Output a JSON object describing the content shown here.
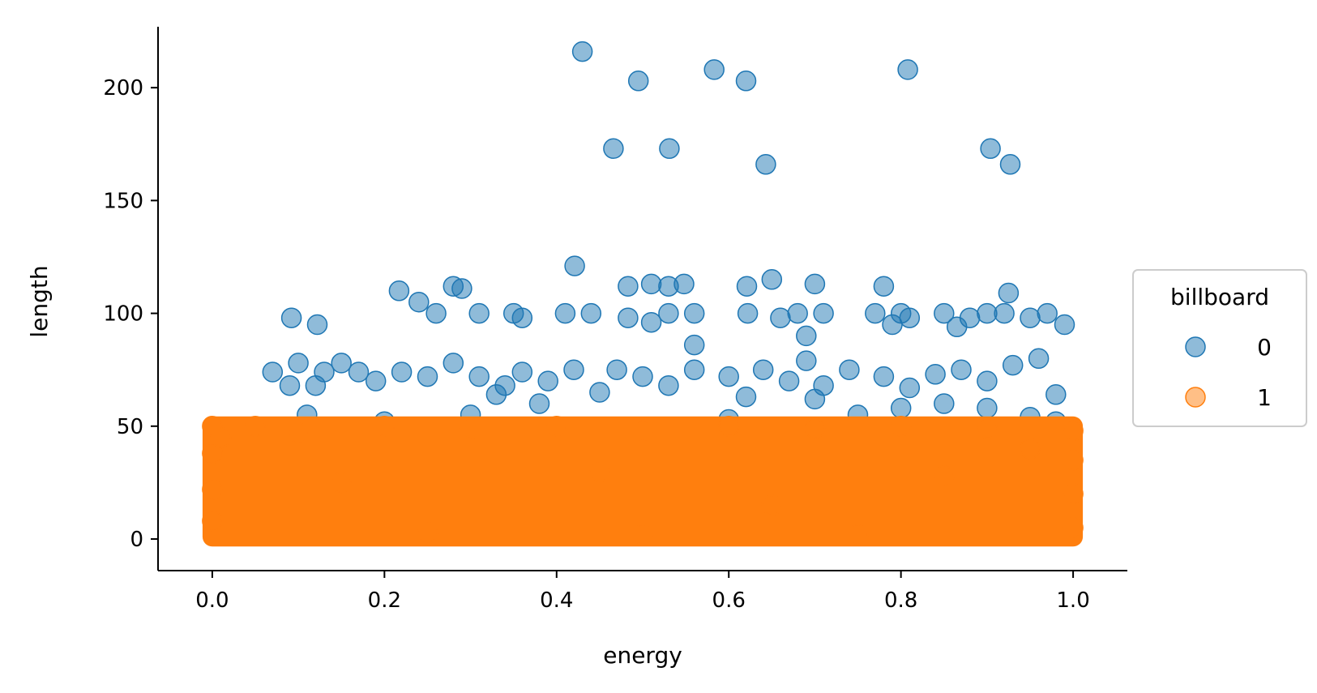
{
  "chart_data": {
    "type": "scatter",
    "title": "",
    "xlabel": "energy",
    "ylabel": "length",
    "xlim": [
      -0.063,
      1.063
    ],
    "ylim": [
      -14,
      227
    ],
    "x_ticks": [
      0.0,
      0.2,
      0.4,
      0.6,
      0.8,
      1.0
    ],
    "x_tick_labels": [
      "0.0",
      "0.2",
      "0.4",
      "0.6",
      "0.8",
      "1.0"
    ],
    "y_ticks": [
      0,
      50,
      100,
      150,
      200
    ],
    "y_tick_labels": [
      "0",
      "50",
      "100",
      "150",
      "200"
    ],
    "grid": false,
    "legend": {
      "title": "billboard",
      "placement": "center-right-outside",
      "entries": [
        {
          "label": "0",
          "color": "#1f77b4"
        },
        {
          "label": "1",
          "color": "#ff7f0e"
        }
      ]
    },
    "marker_alpha": 0.5,
    "series": [
      {
        "name": "0",
        "color": "#1f77b4",
        "points": [
          [
            0.43,
            216
          ],
          [
            0.495,
            203
          ],
          [
            0.583,
            208
          ],
          [
            0.62,
            203
          ],
          [
            0.808,
            208
          ],
          [
            0.466,
            173
          ],
          [
            0.531,
            173
          ],
          [
            0.643,
            166
          ],
          [
            0.904,
            173
          ],
          [
            0.927,
            166
          ],
          [
            0.421,
            121
          ],
          [
            0.217,
            110
          ],
          [
            0.24,
            105
          ],
          [
            0.28,
            112
          ],
          [
            0.29,
            111
          ],
          [
            0.483,
            112
          ],
          [
            0.51,
            113
          ],
          [
            0.53,
            112
          ],
          [
            0.548,
            113
          ],
          [
            0.621,
            112
          ],
          [
            0.65,
            115
          ],
          [
            0.7,
            113
          ],
          [
            0.78,
            112
          ],
          [
            0.925,
            109
          ],
          [
            0.092,
            98
          ],
          [
            0.122,
            95
          ],
          [
            0.26,
            100
          ],
          [
            0.31,
            100
          ],
          [
            0.35,
            100
          ],
          [
            0.36,
            98
          ],
          [
            0.41,
            100
          ],
          [
            0.44,
            100
          ],
          [
            0.483,
            98
          ],
          [
            0.51,
            96
          ],
          [
            0.53,
            100
          ],
          [
            0.56,
            100
          ],
          [
            0.622,
            100
          ],
          [
            0.66,
            98
          ],
          [
            0.68,
            100
          ],
          [
            0.71,
            100
          ],
          [
            0.77,
            100
          ],
          [
            0.8,
            100
          ],
          [
            0.81,
            98
          ],
          [
            0.85,
            100
          ],
          [
            0.88,
            98
          ],
          [
            0.9,
            100
          ],
          [
            0.92,
            100
          ],
          [
            0.95,
            98
          ],
          [
            0.97,
            100
          ],
          [
            0.99,
            95
          ],
          [
            0.865,
            94
          ],
          [
            0.79,
            95
          ],
          [
            0.69,
            90
          ],
          [
            0.56,
            86
          ],
          [
            0.07,
            74
          ],
          [
            0.09,
            68
          ],
          [
            0.1,
            78
          ],
          [
            0.12,
            68
          ],
          [
            0.13,
            74
          ],
          [
            0.15,
            78
          ],
          [
            0.17,
            74
          ],
          [
            0.19,
            70
          ],
          [
            0.22,
            74
          ],
          [
            0.25,
            72
          ],
          [
            0.28,
            78
          ],
          [
            0.31,
            72
          ],
          [
            0.34,
            68
          ],
          [
            0.36,
            74
          ],
          [
            0.39,
            70
          ],
          [
            0.42,
            75
          ],
          [
            0.47,
            75
          ],
          [
            0.5,
            72
          ],
          [
            0.53,
            68
          ],
          [
            0.56,
            75
          ],
          [
            0.6,
            72
          ],
          [
            0.64,
            75
          ],
          [
            0.67,
            70
          ],
          [
            0.69,
            79
          ],
          [
            0.71,
            68
          ],
          [
            0.74,
            75
          ],
          [
            0.78,
            72
          ],
          [
            0.81,
            67
          ],
          [
            0.84,
            73
          ],
          [
            0.87,
            75
          ],
          [
            0.9,
            70
          ],
          [
            0.93,
            77
          ],
          [
            0.96,
            80
          ],
          [
            0.98,
            64
          ],
          [
            0.75,
            55
          ],
          [
            0.85,
            60
          ],
          [
            0.9,
            58
          ],
          [
            0.95,
            54
          ],
          [
            0.7,
            62
          ],
          [
            0.62,
            63
          ],
          [
            0.45,
            65
          ],
          [
            0.38,
            60
          ],
          [
            0.33,
            64
          ],
          [
            0.3,
            55
          ],
          [
            0.11,
            55
          ],
          [
            0.2,
            52
          ],
          [
            0.6,
            53
          ],
          [
            0.8,
            58
          ],
          [
            0.98,
            52
          ],
          [
            0.02,
            20
          ],
          [
            0.1,
            30
          ],
          [
            0.2,
            10
          ],
          [
            0.3,
            25
          ],
          [
            0.4,
            15
          ],
          [
            0.5,
            35
          ],
          [
            0.6,
            22
          ],
          [
            0.7,
            18
          ],
          [
            0.8,
            40
          ],
          [
            0.9,
            12
          ],
          [
            0.98,
            3
          ],
          [
            0.99,
            45
          ]
        ]
      },
      {
        "name": "1",
        "color": "#ff7f0e",
        "dense_region": {
          "x": [
            0.0,
            1.0
          ],
          "y": [
            1,
            50
          ]
        },
        "points": [
          [
            0.0,
            50
          ],
          [
            0.0,
            38
          ],
          [
            0.0,
            22
          ],
          [
            0.0,
            8
          ],
          [
            0.01,
            45
          ],
          [
            0.05,
            50
          ],
          [
            0.1,
            47
          ],
          [
            0.2,
            50
          ],
          [
            0.3,
            49
          ],
          [
            0.4,
            50
          ],
          [
            0.5,
            48
          ],
          [
            0.6,
            50
          ],
          [
            0.7,
            49
          ],
          [
            0.8,
            50
          ],
          [
            0.9,
            49
          ],
          [
            1.0,
            48
          ],
          [
            1.0,
            35
          ],
          [
            1.0,
            20
          ],
          [
            1.0,
            5
          ],
          [
            0.5,
            2
          ],
          [
            0.25,
            3
          ],
          [
            0.75,
            2
          ],
          [
            0.15,
            25
          ],
          [
            0.45,
            30
          ],
          [
            0.65,
            15
          ],
          [
            0.85,
            28
          ],
          [
            0.95,
            40
          ]
        ]
      }
    ]
  }
}
